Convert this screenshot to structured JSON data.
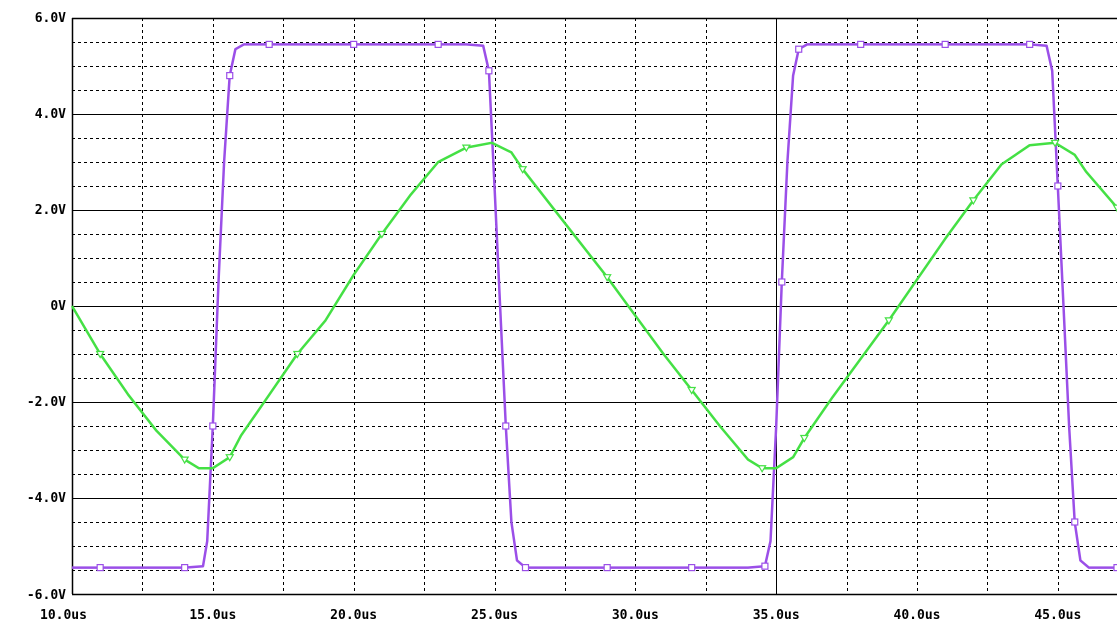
{
  "chart_data": {
    "type": "line",
    "x_unit": "us",
    "y_unit": "V",
    "xlim": [
      10,
      47.1
    ],
    "ylim": [
      -6,
      6
    ],
    "x_ticks": [
      {
        "value": 10,
        "label": "10.0us"
      },
      {
        "value": 15,
        "label": "15.0us"
      },
      {
        "value": 20,
        "label": "20.0us"
      },
      {
        "value": 25,
        "label": "25.0us"
      },
      {
        "value": 30,
        "label": "30.0us"
      },
      {
        "value": 35,
        "label": "35.0us"
      },
      {
        "value": 40,
        "label": "40.0us"
      },
      {
        "value": 45,
        "label": "45.0us"
      }
    ],
    "y_ticks": [
      {
        "value": 6,
        "label": "6.0V"
      },
      {
        "value": 4,
        "label": "4.0V"
      },
      {
        "value": 2,
        "label": "2.0V"
      },
      {
        "value": 0,
        "label": "0V"
      },
      {
        "value": -2,
        "label": "-2.0V"
      },
      {
        "value": -4,
        "label": "-4.0V"
      },
      {
        "value": -6,
        "label": "-6.0V"
      }
    ],
    "grid": true,
    "legend": "none",
    "series": [
      {
        "color": "#9b4fe8",
        "marker": "square",
        "points": [
          [
            10,
            -5.45
          ],
          [
            11,
            -5.45
          ],
          [
            12,
            -5.45
          ],
          [
            13,
            -5.45
          ],
          [
            14,
            -5.45
          ],
          [
            14.65,
            -5.42
          ],
          [
            14.8,
            -4.9
          ],
          [
            15.0,
            -2.5
          ],
          [
            15.2,
            0.5
          ],
          [
            15.4,
            3.0
          ],
          [
            15.6,
            4.8
          ],
          [
            15.8,
            5.35
          ],
          [
            16.1,
            5.45
          ],
          [
            17,
            5.45
          ],
          [
            18,
            5.45
          ],
          [
            19,
            5.45
          ],
          [
            20,
            5.45
          ],
          [
            21,
            5.45
          ],
          [
            22,
            5.45
          ],
          [
            23,
            5.45
          ],
          [
            24,
            5.45
          ],
          [
            24.6,
            5.42
          ],
          [
            24.8,
            4.9
          ],
          [
            25.0,
            2.5
          ],
          [
            25.2,
            0
          ],
          [
            25.4,
            -2.5
          ],
          [
            25.6,
            -4.5
          ],
          [
            25.8,
            -5.3
          ],
          [
            26.1,
            -5.45
          ],
          [
            27,
            -5.45
          ],
          [
            28,
            -5.45
          ],
          [
            29,
            -5.45
          ],
          [
            30,
            -5.45
          ],
          [
            31,
            -5.45
          ],
          [
            32,
            -5.45
          ],
          [
            33,
            -5.45
          ],
          [
            34,
            -5.45
          ],
          [
            34.6,
            -5.42
          ],
          [
            34.8,
            -4.9
          ],
          [
            35.0,
            -2.5
          ],
          [
            35.2,
            0.5
          ],
          [
            35.4,
            3.0
          ],
          [
            35.6,
            4.8
          ],
          [
            35.8,
            5.35
          ],
          [
            36.1,
            5.45
          ],
          [
            37,
            5.45
          ],
          [
            38,
            5.45
          ],
          [
            39,
            5.45
          ],
          [
            40,
            5.45
          ],
          [
            41,
            5.45
          ],
          [
            42,
            5.45
          ],
          [
            43,
            5.45
          ],
          [
            44,
            5.45
          ],
          [
            44.6,
            5.42
          ],
          [
            44.8,
            4.9
          ],
          [
            45.0,
            2.5
          ],
          [
            45.2,
            0
          ],
          [
            45.4,
            -2.5
          ],
          [
            45.6,
            -4.5
          ],
          [
            45.8,
            -5.3
          ],
          [
            46.1,
            -5.45
          ],
          [
            47.1,
            -5.45
          ]
        ]
      },
      {
        "color": "#44e044",
        "marker": "triangle",
        "points": [
          [
            10,
            0
          ],
          [
            11,
            -1.0
          ],
          [
            12,
            -1.85
          ],
          [
            13,
            -2.6
          ],
          [
            14,
            -3.2
          ],
          [
            14.5,
            -3.38
          ],
          [
            15.0,
            -3.38
          ],
          [
            15.6,
            -3.15
          ],
          [
            16,
            -2.7
          ],
          [
            17,
            -1.85
          ],
          [
            18,
            -1.0
          ],
          [
            19,
            -0.3
          ],
          [
            20,
            0.65
          ],
          [
            21,
            1.5
          ],
          [
            22,
            2.3
          ],
          [
            23,
            3.0
          ],
          [
            24,
            3.3
          ],
          [
            24.9,
            3.4
          ],
          [
            25.6,
            3.2
          ],
          [
            26,
            2.85
          ],
          [
            27,
            2.1
          ],
          [
            28,
            1.35
          ],
          [
            29,
            0.6
          ],
          [
            30,
            -0.2
          ],
          [
            31,
            -1.0
          ],
          [
            32,
            -1.75
          ],
          [
            33,
            -2.5
          ],
          [
            34,
            -3.2
          ],
          [
            34.5,
            -3.38
          ],
          [
            35.0,
            -3.38
          ],
          [
            35.6,
            -3.15
          ],
          [
            36,
            -2.75
          ],
          [
            37,
            -1.9
          ],
          [
            38,
            -1.1
          ],
          [
            39,
            -0.3
          ],
          [
            40,
            0.55
          ],
          [
            41,
            1.4
          ],
          [
            42,
            2.2
          ],
          [
            43,
            2.95
          ],
          [
            44,
            3.35
          ],
          [
            44.9,
            3.4
          ],
          [
            45.6,
            3.15
          ],
          [
            46,
            2.8
          ],
          [
            47.1,
            2.05
          ]
        ]
      }
    ]
  }
}
